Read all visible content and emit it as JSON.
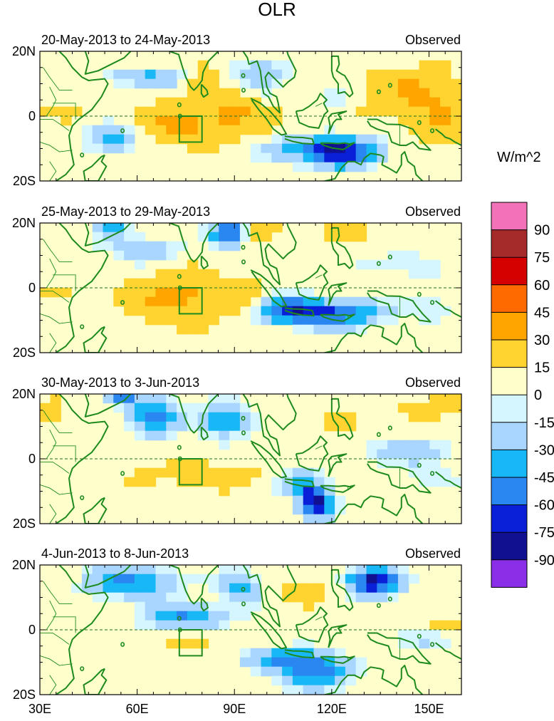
{
  "chart_data": {
    "type": "heatmap",
    "title": "OLR",
    "units_label": "W/m^2",
    "panel_tag": "Observed",
    "x_ticks": [
      "30E",
      "60E",
      "90E",
      "120E",
      "150E"
    ],
    "x_tick_values": [
      30,
      60,
      90,
      120,
      150
    ],
    "y_ticks": [
      "20N",
      "0",
      "20S"
    ],
    "y_tick_values": [
      20,
      0,
      -20
    ],
    "lon_range": [
      30,
      160
    ],
    "lat_range": [
      -20,
      20
    ],
    "colorbar_labels": [
      "90",
      "75",
      "60",
      "45",
      "30",
      "15",
      "0",
      "-15",
      "-30",
      "-45",
      "-60",
      "-75",
      "-90"
    ],
    "colorbar_colors": [
      "#f272b8",
      "#a52a2a",
      "#d50000",
      "#ff6a00",
      "#ffa500",
      "#ffd430",
      "#ffffcc",
      "#d6f6ff",
      "#a9d6ff",
      "#18b8f6",
      "#2a86f0",
      "#0a20d8",
      "#101090",
      "#8a2ee8"
    ],
    "box_region": {
      "lon": [
        73,
        80
      ],
      "lat": [
        -8,
        0
      ]
    },
    "panels": [
      {
        "label": "20-May-2013 to 24-May-2013",
        "blobs": [
          {
            "lon": 82,
            "lat": -2,
            "a": 20,
            "b": 6,
            "v": 28
          },
          {
            "lon": 72,
            "lat": -3,
            "a": 7,
            "b": 5,
            "v": 22
          },
          {
            "lon": 90,
            "lat": 3,
            "a": 6,
            "b": 5,
            "v": 20
          },
          {
            "lon": 145,
            "lat": 7,
            "a": 16,
            "b": 8,
            "v": 30
          },
          {
            "lon": 155,
            "lat": -2,
            "a": 10,
            "b": 7,
            "v": 22
          },
          {
            "lon": 80,
            "lat": 12,
            "a": 5,
            "b": 8,
            "v": 16
          },
          {
            "lon": 37,
            "lat": 2,
            "a": 8,
            "b": 3,
            "v": 12
          },
          {
            "lon": 118,
            "lat": -10,
            "a": 16,
            "b": 4,
            "v": -62
          },
          {
            "lon": 124,
            "lat": -13,
            "a": 8,
            "b": 4,
            "v": -40
          },
          {
            "lon": 52,
            "lat": -7,
            "a": 7,
            "b": 4,
            "v": -42
          },
          {
            "lon": 63,
            "lat": 12,
            "a": 12,
            "b": 3,
            "v": -32
          },
          {
            "lon": 98,
            "lat": 13,
            "a": 9,
            "b": 6,
            "v": -22
          },
          {
            "lon": 122,
            "lat": 5,
            "a": 6,
            "b": 5,
            "v": -18
          }
        ]
      },
      {
        "label": "25-May-2013 to 29-May-2013",
        "blobs": [
          {
            "lon": 73,
            "lat": -3,
            "a": 16,
            "b": 7,
            "v": 38
          },
          {
            "lon": 93,
            "lat": -3,
            "a": 7,
            "b": 5,
            "v": 20
          },
          {
            "lon": 35,
            "lat": 0,
            "a": 6,
            "b": 3,
            "v": 10
          },
          {
            "lon": 100,
            "lat": 18,
            "a": 8,
            "b": 4,
            "v": 16
          },
          {
            "lon": 125,
            "lat": 17,
            "a": 10,
            "b": 4,
            "v": 12
          },
          {
            "lon": 118,
            "lat": -8,
            "a": 16,
            "b": 4,
            "v": -70
          },
          {
            "lon": 105,
            "lat": -6,
            "a": 8,
            "b": 4,
            "v": -36
          },
          {
            "lon": 88,
            "lat": 17,
            "a": 5,
            "b": 4,
            "v": -72
          },
          {
            "lon": 52,
            "lat": 19,
            "a": 5,
            "b": 3,
            "v": -42
          },
          {
            "lon": 62,
            "lat": 12,
            "a": 10,
            "b": 4,
            "v": -28
          },
          {
            "lon": 140,
            "lat": 7,
            "a": 12,
            "b": 4,
            "v": -16
          },
          {
            "lon": 152,
            "lat": -6,
            "a": 8,
            "b": 4,
            "v": -16
          }
        ]
      },
      {
        "label": "30-May-2013 to 3-Jun-2013",
        "blobs": [
          {
            "lon": 82,
            "lat": -5,
            "a": 20,
            "b": 4,
            "v": 20
          },
          {
            "lon": 33,
            "lat": 16,
            "a": 5,
            "b": 4,
            "v": 16
          },
          {
            "lon": 150,
            "lat": 16,
            "a": 10,
            "b": 4,
            "v": 16
          },
          {
            "lon": 125,
            "lat": 12,
            "a": 8,
            "b": 4,
            "v": 12
          },
          {
            "lon": 115,
            "lat": -13,
            "a": 5,
            "b": 5,
            "v": -82
          },
          {
            "lon": 110,
            "lat": -7,
            "a": 6,
            "b": 4,
            "v": -36
          },
          {
            "lon": 65,
            "lat": 13,
            "a": 8,
            "b": 6,
            "v": -50
          },
          {
            "lon": 87,
            "lat": 12,
            "a": 7,
            "b": 5,
            "v": -50
          },
          {
            "lon": 55,
            "lat": 19,
            "a": 4,
            "b": 2,
            "v": -52
          },
          {
            "lon": 142,
            "lat": 2,
            "a": 14,
            "b": 4,
            "v": -26
          },
          {
            "lon": 150,
            "lat": -6,
            "a": 8,
            "b": 3,
            "v": -18
          }
        ]
      },
      {
        "label": "4-Jun-2013 to 8-Jun-2013",
        "blobs": [
          {
            "lon": 78,
            "lat": -4,
            "a": 8,
            "b": 3,
            "v": 14
          },
          {
            "lon": 155,
            "lat": 2,
            "a": 8,
            "b": 3,
            "v": 16
          },
          {
            "lon": 112,
            "lat": 12,
            "a": 10,
            "b": 4,
            "v": 14
          },
          {
            "lon": 133,
            "lat": 15,
            "a": 8,
            "b": 4,
            "v": -82
          },
          {
            "lon": 115,
            "lat": -13,
            "a": 10,
            "b": 5,
            "v": -58
          },
          {
            "lon": 105,
            "lat": -9,
            "a": 12,
            "b": 3,
            "v": -40
          },
          {
            "lon": 58,
            "lat": 15,
            "a": 14,
            "b": 5,
            "v": -46
          },
          {
            "lon": 75,
            "lat": 4,
            "a": 12,
            "b": 4,
            "v": -46
          },
          {
            "lon": 92,
            "lat": 13,
            "a": 6,
            "b": 5,
            "v": -36
          },
          {
            "lon": 150,
            "lat": -3,
            "a": 10,
            "b": 4,
            "v": -16
          }
        ]
      }
    ]
  }
}
